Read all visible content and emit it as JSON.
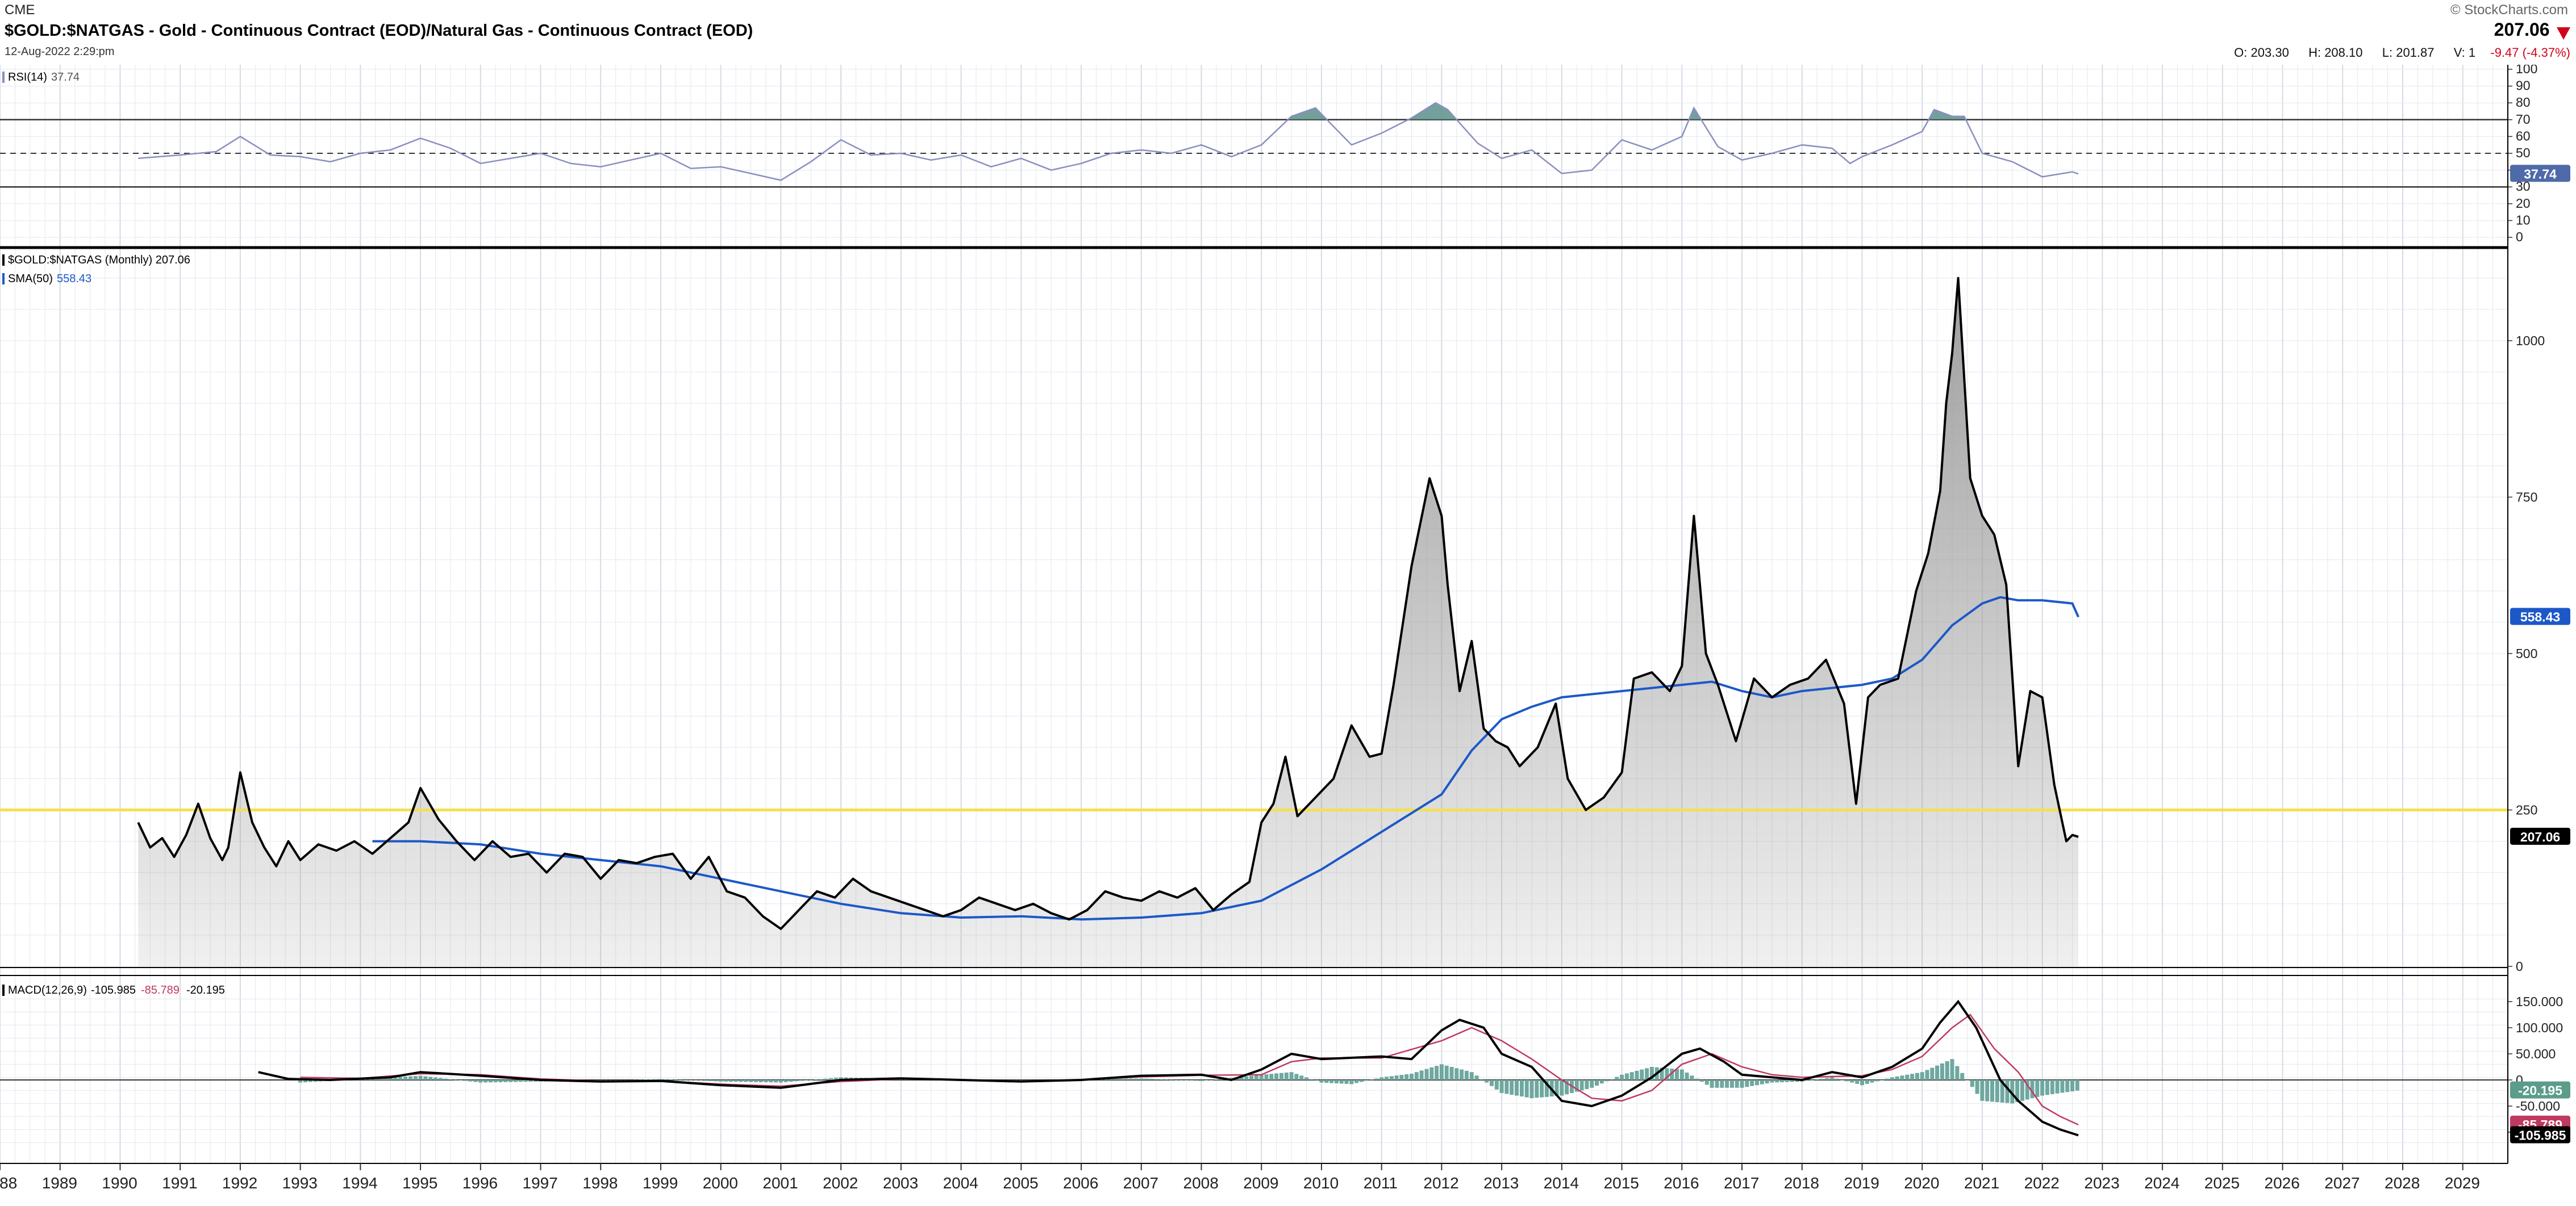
{
  "header": {
    "exchange": "CME",
    "title": "$GOLD:$NATGAS - Gold - Continuous Contract (EOD)/Natural Gas - Continuous Contract (EOD)",
    "datetime": "12-Aug-2022 2:29:pm",
    "watermark": "© StockCharts.com",
    "last_price": "207.06",
    "change": "-9.47 (-4.37%)",
    "change_color": "#d0021b",
    "ohlcv": {
      "open_label": "O:",
      "open": "203.30",
      "high_label": "H:",
      "high": "208.10",
      "low_label": "L:",
      "low": "201.87",
      "vol_label": "V:",
      "vol": "1"
    }
  },
  "panels": {
    "rsi": {
      "label": "RSI(14)",
      "value": "37.74"
    },
    "price": {
      "label": "$GOLD:$NATGAS (Monthly) 207.06",
      "sma_label": "SMA(50)",
      "sma_value": "558.43"
    },
    "macd": {
      "label": "MACD(12,26,9)",
      "macd_value": "-105.985",
      "signal_value": "-85.789",
      "hist_value": "-20.195"
    }
  },
  "colors": {
    "price_line": "#000000",
    "area_fill": "#9a9a9a",
    "sma": "#1c58c8",
    "horizontal_line": "#f5e050",
    "rsi_line": "#8a8fbf",
    "rsi_fill": "#5b8f8a",
    "macd_signal": "#c0395e",
    "macd_hist": "#6fa8a0",
    "grid": "#e4e7ee",
    "badge_blue": "#1c58c8",
    "badge_green": "#5b9c8a",
    "badge_red": "#c0395e",
    "badge_black": "#000000"
  },
  "chart_data": [
    {
      "type": "line",
      "name": "rsi-panel",
      "label": "RSI(14)",
      "ylim": [
        0,
        100
      ],
      "yticks": [
        0,
        10,
        20,
        30,
        40,
        50,
        60,
        70,
        80,
        90,
        100
      ],
      "guide_levels": [
        30,
        50,
        70
      ],
      "last_value_badge": "37.74",
      "series": [
        {
          "name": "RSI(14)",
          "x": [
            1990.3,
            1991.0,
            1991.6,
            1992.0,
            1992.5,
            1993.0,
            1993.5,
            1994.0,
            1994.5,
            1995.0,
            1995.5,
            1996.0,
            1996.5,
            1997.0,
            1997.5,
            1998.0,
            1998.5,
            1999.0,
            1999.5,
            2000.0,
            2000.5,
            2001.0,
            2001.5,
            2002.0,
            2002.5,
            2003.0,
            2003.5,
            2004.0,
            2004.5,
            2005.0,
            2005.5,
            2006.0,
            2006.5,
            2007.0,
            2007.5,
            2008.0,
            2008.5,
            2009.0,
            2009.5,
            2009.9,
            2010.5,
            2011.0,
            2011.5,
            2011.9,
            2012.1,
            2012.6,
            2013.0,
            2013.5,
            2014.0,
            2014.5,
            2015.0,
            2015.5,
            2016.0,
            2016.2,
            2016.6,
            2017.0,
            2017.5,
            2018.0,
            2018.5,
            2018.8,
            2019.0,
            2019.5,
            2020.0,
            2020.2,
            2020.5,
            2020.7,
            2021.0,
            2021.5,
            2022.0,
            2022.5,
            2022.6
          ],
          "values": [
            47,
            49,
            51,
            60,
            49,
            48,
            45,
            50,
            52,
            59,
            53,
            44,
            47,
            50,
            44,
            42,
            46,
            50,
            41,
            42,
            38,
            34,
            45,
            58,
            49,
            50,
            46,
            49,
            42,
            47,
            40,
            44,
            50,
            52,
            50,
            55,
            48,
            55,
            72,
            77,
            55,
            62,
            71,
            80,
            76,
            56,
            47,
            52,
            38,
            40,
            58,
            52,
            60,
            77,
            54,
            46,
            50,
            55,
            53,
            44,
            48,
            55,
            63,
            76,
            72,
            72,
            50,
            45,
            36,
            39,
            37.74
          ]
        }
      ]
    },
    {
      "type": "line",
      "name": "price-panel",
      "label": "$GOLD:$NATGAS (Monthly)",
      "ylim": [
        0,
        1150
      ],
      "yticks": [
        0,
        250,
        500,
        750,
        1000
      ],
      "horizontal_line": 250,
      "last_value_badge": "207.06",
      "sma_badge": "558.43",
      "series": [
        {
          "name": "$GOLD:$NATGAS",
          "x": [
            1990.3,
            1990.5,
            1990.7,
            1990.9,
            1991.1,
            1991.3,
            1991.5,
            1991.7,
            1991.8,
            1992.0,
            1992.2,
            1992.4,
            1992.6,
            1992.8,
            1993.0,
            1993.3,
            1993.6,
            1993.9,
            1994.2,
            1994.5,
            1994.8,
            1995.0,
            1995.3,
            1995.6,
            1995.9,
            1996.2,
            1996.5,
            1996.8,
            1997.1,
            1997.4,
            1997.7,
            1998.0,
            1998.3,
            1998.6,
            1998.9,
            1999.2,
            1999.5,
            1999.8,
            2000.1,
            2000.4,
            2000.7,
            2001.0,
            2001.3,
            2001.6,
            2001.9,
            2002.2,
            2002.5,
            2002.8,
            2003.1,
            2003.4,
            2003.7,
            2004.0,
            2004.3,
            2004.6,
            2004.9,
            2005.2,
            2005.5,
            2005.8,
            2006.1,
            2006.4,
            2006.7,
            2007.0,
            2007.3,
            2007.6,
            2007.9,
            2008.2,
            2008.5,
            2008.8,
            2009.0,
            2009.2,
            2009.4,
            2009.6,
            2009.9,
            2010.2,
            2010.5,
            2010.8,
            2011.0,
            2011.2,
            2011.5,
            2011.8,
            2012.0,
            2012.1,
            2012.3,
            2012.5,
            2012.7,
            2012.9,
            2013.1,
            2013.3,
            2013.6,
            2013.9,
            2014.1,
            2014.4,
            2014.7,
            2015.0,
            2015.2,
            2015.5,
            2015.8,
            2016.0,
            2016.2,
            2016.4,
            2016.6,
            2016.9,
            2017.2,
            2017.5,
            2017.8,
            2018.1,
            2018.4,
            2018.7,
            2018.9,
            2019.1,
            2019.3,
            2019.6,
            2019.9,
            2020.1,
            2020.3,
            2020.4,
            2020.5,
            2020.6,
            2020.8,
            2021.0,
            2021.2,
            2021.4,
            2021.6,
            2021.8,
            2022.0,
            2022.2,
            2022.4,
            2022.5,
            2022.6
          ],
          "values": [
            230,
            190,
            205,
            175,
            210,
            260,
            205,
            170,
            190,
            310,
            230,
            190,
            160,
            200,
            170,
            195,
            185,
            200,
            180,
            205,
            230,
            285,
            235,
            200,
            170,
            200,
            175,
            180,
            150,
            180,
            175,
            140,
            170,
            165,
            175,
            180,
            140,
            175,
            120,
            110,
            80,
            60,
            90,
            120,
            110,
            140,
            120,
            110,
            100,
            90,
            80,
            90,
            110,
            100,
            90,
            100,
            85,
            75,
            90,
            120,
            110,
            105,
            120,
            110,
            125,
            90,
            115,
            135,
            230,
            260,
            335,
            240,
            270,
            300,
            385,
            335,
            340,
            450,
            640,
            780,
            720,
            610,
            440,
            520,
            380,
            360,
            350,
            320,
            350,
            420,
            300,
            250,
            270,
            310,
            460,
            470,
            440,
            480,
            720,
            500,
            450,
            360,
            460,
            430,
            450,
            460,
            490,
            420,
            260,
            430,
            450,
            460,
            600,
            660,
            760,
            900,
            980,
            1100,
            780,
            720,
            690,
            610,
            320,
            440,
            430,
            290,
            200,
            210,
            207.06
          ]
        },
        {
          "name": "SMA(50)",
          "x": [
            1994.2,
            1995.0,
            1996.0,
            1997.0,
            1998.0,
            1999.0,
            2000.0,
            2001.0,
            2002.0,
            2003.0,
            2004.0,
            2005.0,
            2006.0,
            2007.0,
            2008.0,
            2009.0,
            2010.0,
            2011.0,
            2012.0,
            2012.5,
            2013.0,
            2013.5,
            2014.0,
            2015.0,
            2016.0,
            2016.5,
            2017.0,
            2017.5,
            2018.0,
            2019.0,
            2019.5,
            2020.0,
            2020.5,
            2021.0,
            2021.3,
            2021.6,
            2022.0,
            2022.5,
            2022.6
          ],
          "values": [
            200,
            200,
            195,
            180,
            170,
            160,
            140,
            120,
            100,
            85,
            78,
            80,
            75,
            78,
            85,
            105,
            155,
            215,
            275,
            345,
            395,
            415,
            430,
            440,
            450,
            455,
            440,
            430,
            440,
            450,
            460,
            490,
            545,
            580,
            590,
            585,
            585,
            580,
            558.43
          ]
        }
      ]
    },
    {
      "type": "line",
      "name": "macd-panel",
      "label": "MACD(12,26,9)",
      "ylim": [
        -120,
        160
      ],
      "yticks": [
        -100,
        -50,
        0,
        50,
        100,
        150
      ],
      "ytick_labels": [
        "-100.000",
        "-50.000",
        "0",
        "50.000",
        "100.000",
        "150.000"
      ],
      "last_value_badges": [
        "-20.195",
        "-85.789",
        "-105.985"
      ],
      "series": [
        {
          "name": "MACD",
          "x": [
            1992.3,
            1992.8,
            1993.5,
            1994.5,
            1995.0,
            1996.0,
            1997.0,
            1998.0,
            1999.0,
            2000.0,
            2001.0,
            2002.0,
            2003.0,
            2004.0,
            2005.0,
            2006.0,
            2007.0,
            2008.0,
            2008.5,
            2009.0,
            2009.5,
            2010.0,
            2011.0,
            2011.5,
            2012.0,
            2012.3,
            2012.7,
            2013.0,
            2013.5,
            2014.0,
            2014.5,
            2015.0,
            2015.5,
            2016.0,
            2016.3,
            2016.7,
            2017.0,
            2017.5,
            2018.0,
            2018.5,
            2019.0,
            2019.5,
            2020.0,
            2020.3,
            2020.6,
            2020.9,
            2021.3,
            2021.6,
            2022.0,
            2022.3,
            2022.6
          ],
          "values": [
            15,
            2,
            0,
            5,
            15,
            8,
            0,
            -3,
            -2,
            -10,
            -15,
            0,
            3,
            0,
            -3,
            0,
            8,
            10,
            0,
            20,
            50,
            40,
            45,
            40,
            95,
            115,
            100,
            50,
            25,
            -40,
            -50,
            -30,
            5,
            50,
            60,
            35,
            10,
            5,
            0,
            15,
            5,
            25,
            60,
            110,
            150,
            100,
            0,
            -40,
            -80,
            -95,
            -105.985
          ]
        },
        {
          "name": "Signal",
          "x": [
            1993.0,
            1994.0,
            1995.0,
            1996.0,
            1997.0,
            1998.0,
            1999.0,
            2000.0,
            2001.0,
            2002.0,
            2003.0,
            2004.0,
            2005.0,
            2006.0,
            2007.0,
            2008.0,
            2009.0,
            2009.5,
            2010.0,
            2011.0,
            2012.0,
            2012.5,
            2013.0,
            2013.5,
            2014.0,
            2014.5,
            2015.0,
            2015.5,
            2016.0,
            2016.5,
            2017.0,
            2017.5,
            2018.0,
            2019.0,
            2019.5,
            2020.0,
            2020.5,
            2020.8,
            2021.2,
            2021.6,
            2022.0,
            2022.3,
            2022.6
          ],
          "values": [
            5,
            3,
            12,
            10,
            2,
            -2,
            -2,
            -8,
            -12,
            -3,
            2,
            0,
            -2,
            0,
            6,
            9,
            10,
            35,
            42,
            42,
            75,
            100,
            75,
            40,
            0,
            -35,
            -40,
            -20,
            30,
            50,
            25,
            10,
            5,
            8,
            20,
            45,
            100,
            125,
            60,
            15,
            -50,
            -70,
            -85.789
          ]
        },
        {
          "name": "Histogram",
          "x": [
            1993.0,
            1994.0,
            1995.0,
            1996.0,
            1997.0,
            1998.0,
            1999.0,
            2000.0,
            2001.0,
            2002.0,
            2003.0,
            2004.0,
            2005.0,
            2006.0,
            2007.0,
            2008.0,
            2009.0,
            2009.5,
            2010.0,
            2010.5,
            2011.0,
            2011.5,
            2012.0,
            2012.5,
            2013.0,
            2013.5,
            2014.0,
            2014.5,
            2015.0,
            2015.5,
            2016.0,
            2016.5,
            2017.0,
            2017.5,
            2018.0,
            2018.5,
            2019.0,
            2019.5,
            2020.0,
            2020.5,
            2021.0,
            2021.5,
            2022.0,
            2022.3,
            2022.6
          ],
          "values": [
            -5,
            2,
            8,
            -5,
            -3,
            -2,
            2,
            -3,
            -5,
            5,
            2,
            0,
            -1,
            1,
            3,
            -2,
            10,
            15,
            -5,
            -8,
            5,
            12,
            30,
            15,
            -25,
            -35,
            -30,
            -15,
            10,
            25,
            20,
            -15,
            -15,
            -5,
            -3,
            5,
            -10,
            5,
            15,
            40,
            -40,
            -45,
            -30,
            -25,
            -20.195
          ]
        }
      ]
    }
  ],
  "xaxis": {
    "labels": [
      "1988",
      "1989",
      "1990",
      "1991",
      "1992",
      "1993",
      "1994",
      "1995",
      "1996",
      "1997",
      "1998",
      "1999",
      "2000",
      "2001",
      "2002",
      "2003",
      "2004",
      "2005",
      "2006",
      "2007",
      "2008",
      "2009",
      "2010",
      "2011",
      "2012",
      "2013",
      "2014",
      "2015",
      "2016",
      "2017",
      "2018",
      "2019",
      "2020",
      "2021",
      "2022",
      "2023",
      "2024",
      "2025",
      "2026",
      "2027",
      "2028",
      "2029"
    ]
  }
}
